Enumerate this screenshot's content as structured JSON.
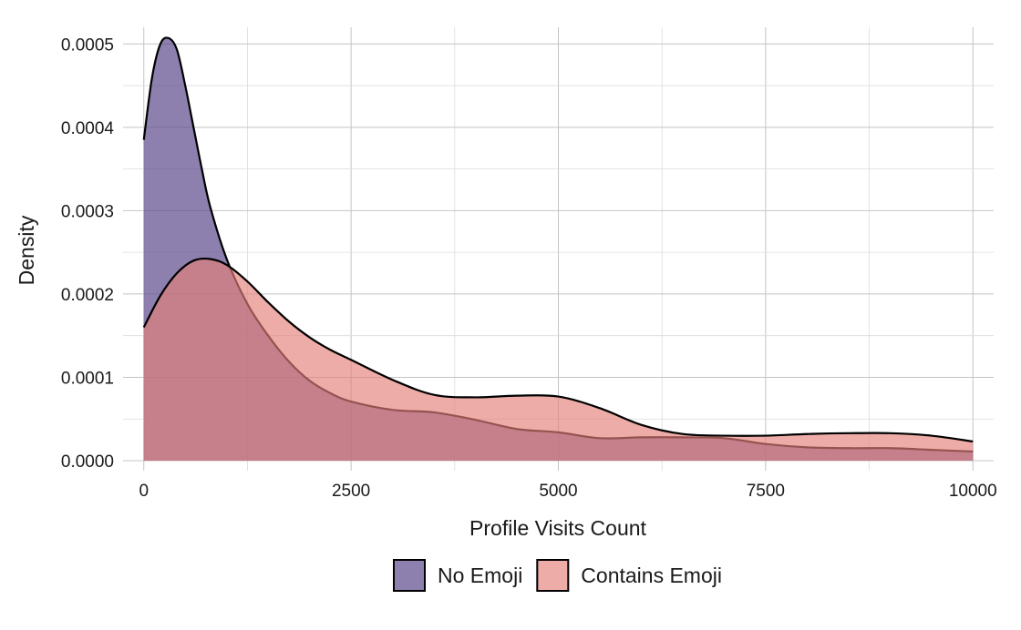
{
  "chart_data": {
    "type": "area",
    "xlabel": "Profile Visits Count",
    "ylabel": "Density",
    "xlim": [
      -250,
      10250
    ],
    "ylim": [
      -1.2e-05,
      0.00052
    ],
    "x_ticks": [
      0,
      2500,
      5000,
      7500,
      10000
    ],
    "x_tick_labels": [
      "0",
      "2500",
      "5000",
      "7500",
      "10000"
    ],
    "y_ticks": [
      0,
      0.0001,
      0.0002,
      0.0003,
      0.0004,
      0.0005
    ],
    "y_tick_labels": [
      "0.0000",
      "0.0001",
      "0.0002",
      "0.0003",
      "0.0004",
      "0.0005"
    ],
    "grid": true,
    "legend_position": "bottom",
    "series": [
      {
        "name": "No Emoji",
        "color": "#5d4a8c",
        "opacity": 0.7,
        "x": [
          0,
          100,
          200,
          300,
          400,
          500,
          600,
          700,
          800,
          1000,
          1250,
          1500,
          1750,
          2000,
          2250,
          2500,
          3000,
          3500,
          4000,
          4500,
          5000,
          5500,
          6000,
          6500,
          7000,
          7500,
          8000,
          8500,
          9000,
          9500,
          10000
        ],
        "y": [
          0.000385,
          0.00046,
          0.0005,
          0.000507,
          0.000493,
          0.00045,
          0.0004,
          0.00035,
          0.000305,
          0.000242,
          0.000188,
          0.00015,
          0.000119,
          9.6e-05,
          8.1e-05,
          7.1e-05,
          6.1e-05,
          5.8e-05,
          4.9e-05,
          3.8e-05,
          3.4e-05,
          2.7e-05,
          2.8e-05,
          2.8e-05,
          2.7e-05,
          2e-05,
          1.6e-05,
          1.5e-05,
          1.5e-05,
          1.3e-05,
          1.1e-05
        ]
      },
      {
        "name": "Contains Emoji",
        "color": "#e57f7a",
        "opacity": 0.65,
        "x": [
          0,
          200,
          400,
          600,
          800,
          1000,
          1250,
          1500,
          1750,
          2000,
          2250,
          2500,
          3000,
          3500,
          4000,
          4500,
          5000,
          5500,
          6000,
          6500,
          7000,
          7500,
          8000,
          8500,
          9000,
          9500,
          10000
        ],
        "y": [
          0.00016,
          0.000198,
          0.000225,
          0.00024,
          0.000242,
          0.000235,
          0.000215,
          0.00019,
          0.000167,
          0.000148,
          0.000133,
          0.000121,
          9.7e-05,
          7.9e-05,
          7.6e-05,
          7.8e-05,
          7.7e-05,
          6.3e-05,
          4.3e-05,
          3.2e-05,
          3e-05,
          3e-05,
          3.2e-05,
          3.3e-05,
          3.3e-05,
          3e-05,
          2.3e-05
        ]
      }
    ]
  }
}
